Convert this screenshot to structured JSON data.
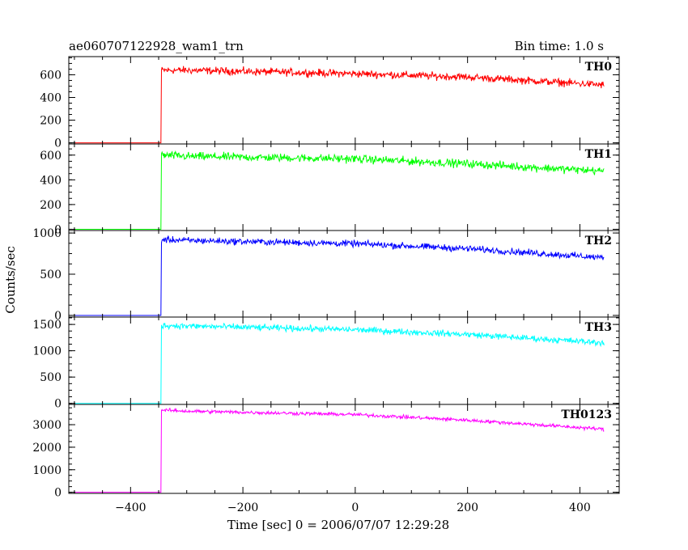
{
  "header": {
    "title": "ae060707122928_wam1_trn",
    "bin_time": "Bin time: 1.0 s"
  },
  "chart_data": {
    "type": "line",
    "xlabel": "Time [sec] 0 = 2006/07/07 12:29:28",
    "ylabel": "Counts/sec",
    "xlim": [
      -510,
      470
    ],
    "x_ticks": [
      -400,
      -200,
      0,
      200,
      400
    ],
    "x_tick_labels": [
      "−400",
      "−200",
      "0",
      "200",
      "400"
    ],
    "data_range": [
      -500,
      443
    ],
    "onset_time": -346,
    "panels": [
      {
        "name": "TH0",
        "color": "#ff0000",
        "ylim": [
          -10,
          760
        ],
        "yticks": [
          0,
          200,
          400,
          600
        ],
        "ytick_labels": [
          "0",
          "200",
          "400",
          "600"
        ],
        "baseline": 0,
        "trend": [
          [
            -346,
            0
          ],
          [
            -345,
            640
          ],
          [
            -300,
            640
          ],
          [
            0,
            610
          ],
          [
            200,
            580
          ],
          [
            443,
            510
          ]
        ],
        "noise": 25
      },
      {
        "name": "TH1",
        "color": "#00ff00",
        "ylim": [
          -10,
          690
        ],
        "yticks": [
          0,
          200,
          400,
          600
        ],
        "ytick_labels": [
          "0",
          "200",
          "400",
          "600"
        ],
        "baseline": 0,
        "trend": [
          [
            -346,
            0
          ],
          [
            -345,
            600
          ],
          [
            -300,
            590
          ],
          [
            0,
            570
          ],
          [
            200,
            530
          ],
          [
            443,
            470
          ]
        ],
        "noise": 25
      },
      {
        "name": "TH2",
        "color": "#0000ff",
        "ylim": [
          -20,
          1030
        ],
        "yticks": [
          0,
          500,
          1000
        ],
        "ytick_labels": [
          "0",
          "500",
          "1000"
        ],
        "baseline": 0,
        "trend": [
          [
            -346,
            0
          ],
          [
            -345,
            920
          ],
          [
            -300,
            910
          ],
          [
            0,
            870
          ],
          [
            200,
            810
          ],
          [
            443,
            700
          ]
        ],
        "noise": 30
      },
      {
        "name": "TH3",
        "color": "#00ffff",
        "ylim": [
          -20,
          1640
        ],
        "yticks": [
          0,
          500,
          1000,
          1500
        ],
        "ytick_labels": [
          "0",
          "500",
          "1000",
          "1500"
        ],
        "baseline": 0,
        "trend": [
          [
            -346,
            0
          ],
          [
            -345,
            1480
          ],
          [
            -300,
            1470
          ],
          [
            0,
            1400
          ],
          [
            200,
            1310
          ],
          [
            443,
            1150
          ]
        ],
        "noise": 45
      },
      {
        "name": "TH0123",
        "color": "#ff00ff",
        "ylim": [
          -50,
          3900
        ],
        "yticks": [
          0,
          1000,
          2000,
          3000
        ],
        "ytick_labels": [
          "0",
          "1000",
          "2000",
          "3000"
        ],
        "baseline": 0,
        "trend": [
          [
            -346,
            0
          ],
          [
            -345,
            3650
          ],
          [
            -300,
            3600
          ],
          [
            0,
            3450
          ],
          [
            200,
            3200
          ],
          [
            443,
            2800
          ]
        ],
        "noise": 60
      }
    ]
  }
}
